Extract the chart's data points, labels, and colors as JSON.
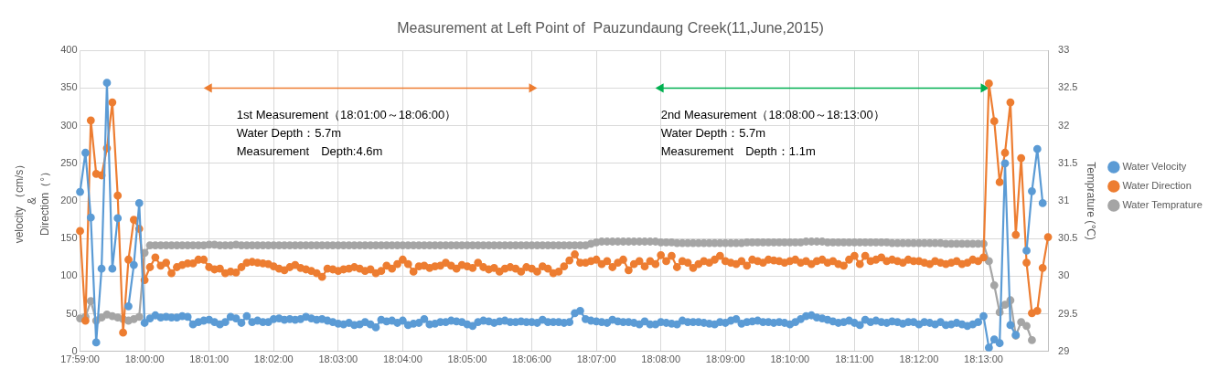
{
  "chart_data": {
    "type": "line",
    "title": "Measurement at Left Point of  Pauzundaung Creek(11,June,2015)",
    "ylabel": "velocity （cm/s）\n&\nDirection（°）",
    "y2label": "Temprature (℃)",
    "categories": [
      "17:59:00",
      null,
      null,
      null,
      null,
      null,
      null,
      null,
      null,
      null,
      null,
      null,
      "18:00:00",
      null,
      null,
      null,
      null,
      null,
      null,
      null,
      null,
      null,
      null,
      null,
      "18:01:00",
      null,
      null,
      null,
      null,
      null,
      null,
      null,
      null,
      null,
      null,
      null,
      "18:02:00",
      null,
      null,
      null,
      null,
      null,
      null,
      null,
      null,
      null,
      null,
      null,
      "18:03:00",
      null,
      null,
      null,
      null,
      null,
      null,
      null,
      null,
      null,
      null,
      null,
      "18:04:00",
      null,
      null,
      null,
      null,
      null,
      null,
      null,
      null,
      null,
      null,
      null,
      "18:05:00",
      null,
      null,
      null,
      null,
      null,
      null,
      null,
      null,
      null,
      null,
      null,
      "18:06:00",
      null,
      null,
      null,
      null,
      null,
      null,
      null,
      null,
      null,
      null,
      null,
      "18:07:00",
      null,
      null,
      null,
      null,
      null,
      null,
      null,
      null,
      null,
      null,
      null,
      "18:08:00",
      null,
      null,
      null,
      null,
      null,
      null,
      null,
      null,
      null,
      null,
      null,
      "18:09:00",
      null,
      null,
      null,
      null,
      null,
      null,
      null,
      null,
      null,
      null,
      null,
      "18:10:00",
      null,
      null,
      null,
      null,
      null,
      null,
      null,
      null,
      null,
      null,
      null,
      "18:11:00",
      null,
      null,
      null,
      null,
      null,
      null,
      null,
      null,
      null,
      null,
      null,
      "18:12:00",
      null,
      null,
      null,
      null,
      null,
      null,
      null,
      null,
      null,
      null,
      null,
      "18:13:00",
      null,
      null,
      null,
      null,
      null,
      null,
      null,
      null,
      null,
      null,
      null,
      null
    ],
    "series": [
      {
        "name": "Water Velocity",
        "color": "#5b9bd5",
        "values": [
          212,
          264,
          178,
          12,
          110,
          357,
          110,
          177,
          null,
          60,
          115,
          197,
          38,
          44,
          48,
          45,
          46,
          45,
          45,
          47,
          46,
          36,
          39,
          41,
          42,
          39,
          36,
          39,
          46,
          44,
          38,
          47,
          39,
          41,
          39,
          39,
          43,
          44,
          42,
          43,
          42,
          43,
          46,
          44,
          42,
          43,
          41,
          39,
          37,
          36,
          38,
          35,
          36,
          39,
          36,
          32,
          42,
          40,
          41,
          38,
          41,
          35,
          37,
          38,
          43,
          36,
          37,
          39,
          39,
          41,
          40,
          39,
          36,
          34,
          39,
          41,
          40,
          38,
          40,
          41,
          39,
          39,
          40,
          39,
          39,
          38,
          42,
          39,
          39,
          39,
          38,
          39,
          51,
          54,
          43,
          41,
          40,
          39,
          38,
          42,
          40,
          39,
          39,
          38,
          36,
          40,
          36,
          36,
          39,
          38,
          37,
          36,
          41,
          39,
          39,
          39,
          38,
          37,
          36,
          39,
          38,
          41,
          43,
          37,
          39,
          40,
          41,
          39,
          39,
          38,
          39,
          38,
          36,
          39,
          43,
          47,
          48,
          45,
          44,
          42,
          40,
          38,
          39,
          41,
          38,
          35,
          42,
          39,
          41,
          39,
          38,
          40,
          39,
          37,
          39,
          39,
          36,
          39,
          38,
          36,
          39,
          35,
          36,
          38,
          36,
          34,
          36,
          39,
          47,
          5,
          16,
          11,
          250,
          35,
          22,
          null,
          134,
          213,
          269,
          197,
          null
        ]
      },
      {
        "name": "Water Direction",
        "color": "#ed7d31",
        "values": [
          160,
          41,
          307,
          236,
          234,
          270,
          331,
          207,
          25,
          122,
          175,
          163,
          95,
          112,
          125,
          114,
          118,
          104,
          112,
          115,
          117,
          117,
          122,
          122,
          112,
          109,
          110,
          104,
          106,
          105,
          112,
          118,
          119,
          118,
          117,
          116,
          113,
          110,
          108,
          112,
          115,
          111,
          109,
          107,
          104,
          99,
          110,
          109,
          107,
          109,
          110,
          112,
          110,
          107,
          109,
          104,
          107,
          114,
          110,
          116,
          122,
          116,
          106,
          113,
          114,
          111,
          113,
          114,
          118,
          114,
          110,
          115,
          113,
          111,
          118,
          112,
          109,
          111,
          106,
          110,
          112,
          110,
          106,
          112,
          110,
          106,
          113,
          110,
          104,
          106,
          113,
          121,
          129,
          118,
          118,
          120,
          122,
          116,
          120,
          112,
          118,
          122,
          108,
          116,
          120,
          113,
          120,
          116,
          128,
          120,
          127,
          112,
          120,
          118,
          111,
          116,
          120,
          118,
          122,
          127,
          120,
          118,
          116,
          120,
          114,
          122,
          120,
          118,
          122,
          121,
          120,
          118,
          120,
          122,
          118,
          120,
          116,
          120,
          122,
          118,
          120,
          116,
          114,
          122,
          127,
          116,
          127,
          120,
          122,
          125,
          120,
          122,
          120,
          118,
          122,
          120,
          120,
          118,
          116,
          120,
          118,
          116,
          118,
          120,
          116,
          118,
          122,
          120,
          125,
          356,
          306,
          225,
          264,
          331,
          155,
          257,
          118,
          51,
          54,
          111,
          152
        ]
      },
      {
        "type": "line",
        "color": "#ed7d31",
        "marker": "triangle",
        "x": [
          "18:01:00",
          "18:06:00"
        ],
        "values": [
          350,
          350
        ]
      },
      {
        "type": "line",
        "color": "#00b050",
        "marker": "triangle",
        "x": [
          "18:08:00",
          "18:13:00"
        ],
        "values": [
          350,
          350
        ]
      },
      {
        "name": "Water Temprature",
        "color": "#a5a5a5",
        "axis": "y2",
        "values": [
          29.44,
          29.46,
          29.67,
          29.41,
          29.45,
          29.49,
          29.47,
          29.45,
          29.43,
          29.41,
          29.43,
          29.46,
          30.31,
          30.41,
          30.41,
          30.41,
          30.41,
          30.41,
          30.41,
          30.41,
          30.41,
          30.41,
          30.41,
          30.41,
          30.42,
          30.42,
          30.41,
          30.41,
          30.41,
          30.42,
          30.41,
          30.41,
          30.41,
          30.41,
          30.41,
          30.41,
          30.41,
          30.41,
          30.41,
          30.41,
          30.41,
          30.41,
          30.41,
          30.41,
          30.41,
          30.41,
          30.41,
          30.41,
          30.41,
          30.41,
          30.41,
          30.41,
          30.41,
          30.41,
          30.41,
          30.41,
          30.41,
          30.41,
          30.41,
          30.41,
          30.41,
          30.41,
          30.41,
          30.41,
          30.41,
          30.41,
          30.41,
          30.41,
          30.41,
          30.41,
          30.41,
          30.41,
          30.41,
          30.41,
          30.41,
          30.41,
          30.41,
          30.41,
          30.41,
          30.41,
          30.41,
          30.41,
          30.41,
          30.41,
          30.41,
          30.41,
          30.41,
          30.41,
          30.41,
          30.41,
          30.41,
          30.41,
          30.41,
          30.41,
          30.41,
          30.43,
          30.45,
          30.46,
          30.46,
          30.46,
          30.46,
          30.46,
          30.46,
          30.46,
          30.46,
          30.46,
          30.46,
          30.46,
          30.45,
          30.45,
          30.45,
          30.44,
          30.44,
          30.44,
          30.44,
          30.44,
          30.44,
          30.44,
          30.44,
          30.44,
          30.44,
          30.44,
          30.44,
          30.44,
          30.45,
          30.45,
          30.45,
          30.45,
          30.45,
          30.45,
          30.45,
          30.45,
          30.45,
          30.45,
          30.45,
          30.46,
          30.46,
          30.46,
          30.46,
          30.45,
          30.45,
          30.45,
          30.45,
          30.45,
          30.45,
          30.45,
          30.45,
          30.45,
          30.45,
          30.45,
          30.45,
          30.44,
          30.44,
          30.44,
          30.44,
          30.44,
          30.44,
          30.44,
          30.44,
          30.44,
          30.44,
          30.43,
          30.43,
          30.43,
          30.43,
          30.43,
          30.43,
          30.43,
          30.43,
          30.2,
          29.88,
          29.52,
          29.62,
          29.68,
          29.21,
          29.39,
          29.34,
          29.15,
          null,
          null,
          null
        ]
      }
    ],
    "ylim": [
      0,
      400
    ],
    "yticks": [
      0,
      50,
      100,
      150,
      200,
      250,
      300,
      350,
      400
    ],
    "y2lim": [
      29,
      33
    ],
    "y2ticks": [
      29,
      29.5,
      30,
      30.5,
      31,
      31.5,
      32,
      32.5,
      33
    ],
    "annotations": [
      "1st Measurement（18:01:00～18:06:00）\nWater Depth：5.7m\nMeasurement　Depth:4.6m",
      "2nd Measurement（18:08:00～18:13:00）\nWater Depth：5.7m\nMeasurement　Depth：1.1m"
    ],
    "grid": true,
    "legend": "right",
    "marker": "circle",
    "line_style": "solid"
  }
}
